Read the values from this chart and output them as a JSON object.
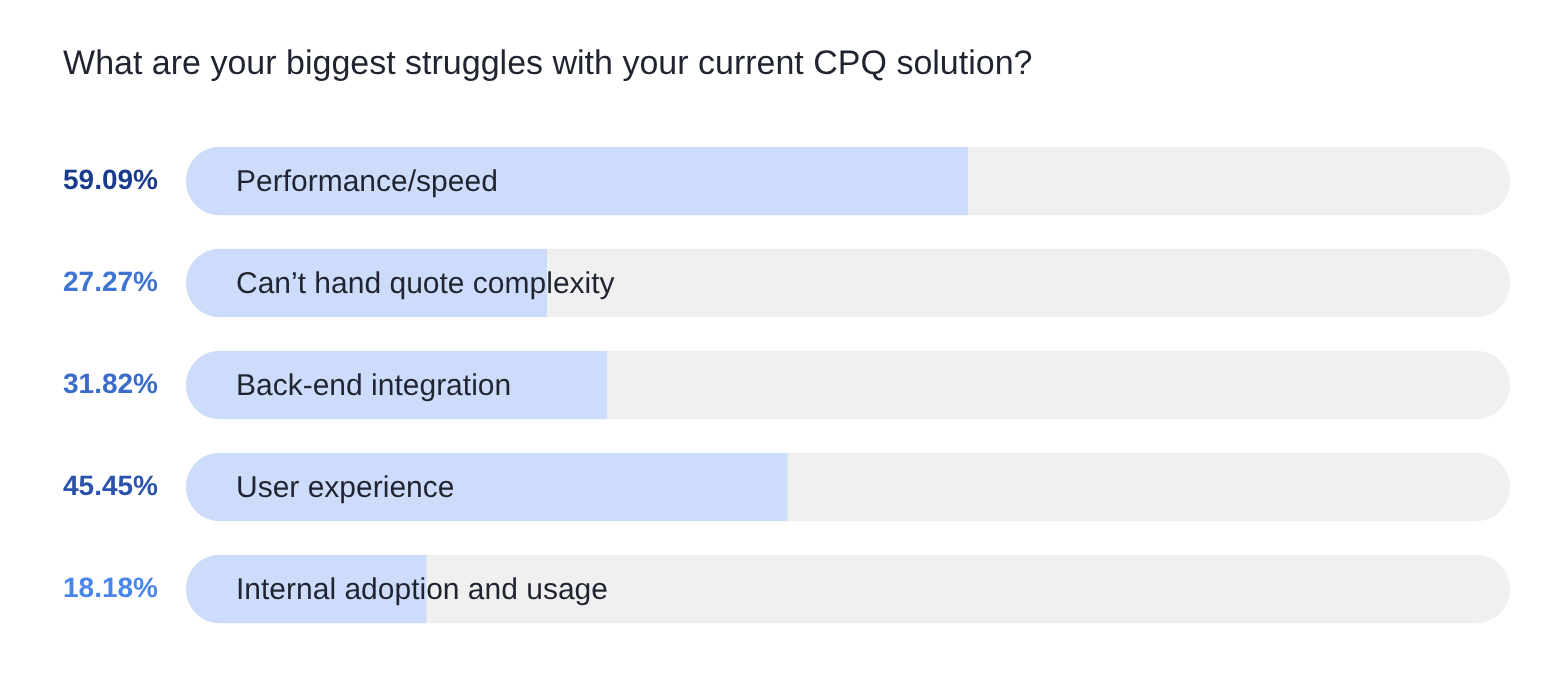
{
  "chart_data": {
    "type": "bar",
    "orientation": "horizontal",
    "title": "What are your biggest struggles with your current CPQ solution?",
    "categories": [
      "Performance/speed",
      "Can’t hand quote complexity",
      "Back-end integration",
      "User experience",
      "Internal adoption and usage"
    ],
    "values": [
      59.09,
      27.27,
      31.82,
      45.45,
      18.18
    ],
    "value_labels": [
      "59.09%",
      "27.27%",
      "31.82%",
      "45.45%",
      "18.18%"
    ],
    "color": "#cddcfb",
    "xlim": [
      0,
      100
    ],
    "tick_labels": false
  }
}
